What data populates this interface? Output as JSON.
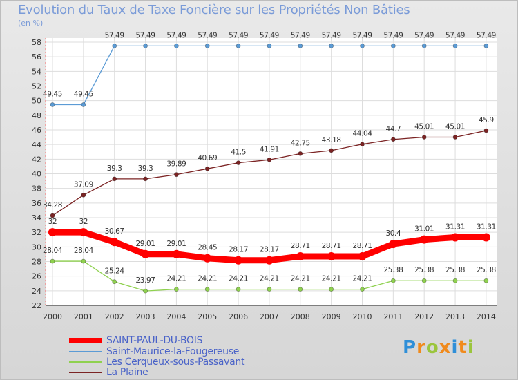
{
  "chart_data": {
    "type": "line",
    "title": "Evolution du Taux de Taxe Foncière sur les Propriétés Non Bâties",
    "unit_label": "(en %)",
    "x": [
      "2000",
      "2001",
      "2002",
      "2003",
      "2004",
      "2005",
      "2006",
      "2007",
      "2008",
      "2009",
      "2010",
      "2011",
      "2012",
      "2013",
      "2014"
    ],
    "ylim": [
      22,
      58
    ],
    "yticks": [
      22,
      24,
      26,
      28,
      30,
      32,
      34,
      36,
      38,
      40,
      42,
      44,
      46,
      48,
      50,
      52,
      54,
      56,
      58
    ],
    "grid": true,
    "legend_position": "bottom-left",
    "series": [
      {
        "name": "SAINT-PAUL-DU-BOIS",
        "color": "#ff0000",
        "values": [
          32,
          32,
          30.67,
          29.01,
          29.01,
          28.45,
          28.17,
          28.17,
          28.71,
          28.71,
          28.71,
          30.4,
          31.01,
          31.31,
          31.31
        ],
        "labels": [
          "32",
          "32",
          "30.67",
          "29.01",
          "29.01",
          "28.45",
          "28.17",
          "28.17",
          "28.71",
          "28.71",
          "28.71",
          "30.4",
          "31.01",
          "31.31",
          "31.31"
        ]
      },
      {
        "name": "Saint-Maurice-la-Fougereuse",
        "color": "#5b9bd5",
        "values": [
          49.45,
          49.45,
          57.49,
          57.49,
          57.49,
          57.49,
          57.49,
          57.49,
          57.49,
          57.49,
          57.49,
          57.49,
          57.49,
          57.49,
          57.49
        ],
        "labels": [
          "49.45",
          "49.45",
          "57.49",
          "57.49",
          "57.49",
          "57.49",
          "57.49",
          "57.49",
          "57.49",
          "57.49",
          "57.49",
          "57.49",
          "57.49",
          "57.49",
          "57.49"
        ]
      },
      {
        "name": "Les Cerqueux-sous-Passavant",
        "color": "#8fd14f",
        "values": [
          28.04,
          28.04,
          25.24,
          23.97,
          24.21,
          24.21,
          24.21,
          24.21,
          24.21,
          24.21,
          24.21,
          25.38,
          25.38,
          25.38,
          25.38
        ],
        "labels": [
          "28.04",
          "28.04",
          "25.24",
          "23.97",
          "24.21",
          "24.21",
          "24.21",
          "24.21",
          "24.21",
          "24.21",
          "24.21",
          "25.38",
          "25.38",
          "25.38",
          "25.38"
        ]
      },
      {
        "name": "La Plaine",
        "color": "#7b2323",
        "values": [
          34.28,
          37.09,
          39.3,
          39.3,
          39.89,
          40.69,
          41.5,
          41.91,
          42.75,
          43.18,
          44.04,
          44.7,
          45.01,
          45.01,
          45.9
        ],
        "labels": [
          "34.28",
          "37.09",
          "39.3",
          "39.3",
          "39.89",
          "40.69",
          "41.5",
          "41.91",
          "42.75",
          "43.18",
          "44.04",
          "44.7",
          "45.01",
          "45.01",
          "45.9"
        ]
      }
    ]
  },
  "logo": {
    "letters": [
      "P",
      "r",
      "o",
      "x",
      "i",
      "t",
      "i"
    ],
    "colors": [
      "#2f8fd8",
      "#f08a1c",
      "#9bc53d",
      "#f08a1c",
      "#2f8fd8",
      "#f08a1c",
      "#9bc53d"
    ]
  }
}
